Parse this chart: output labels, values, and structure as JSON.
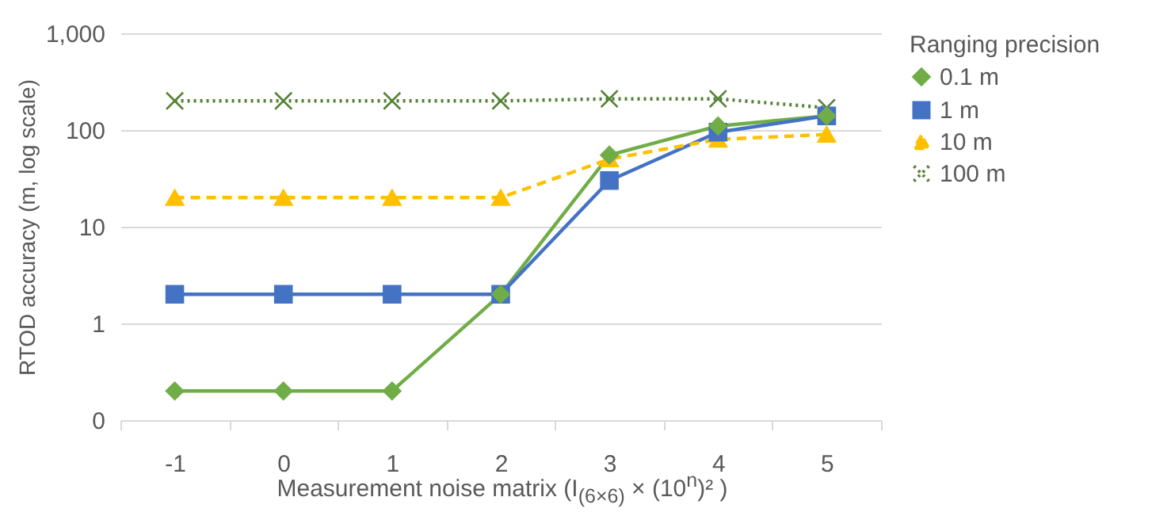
{
  "chart_data": {
    "type": "line",
    "xlabel": "Measurement noise matrix (I$_{(6×6)}$ × (10$^{n}$)² )",
    "ylabel": "RTOD accuracy (m, log scale)",
    "legend_title": "Ranging precision",
    "categories": [
      "-1",
      "0",
      "1",
      "2",
      "3",
      "4",
      "5"
    ],
    "series": [
      {
        "name": "0.1 m",
        "color": "#70ad47",
        "marker": "diamond",
        "line_style": "solid",
        "values": [
          0.2,
          0.2,
          0.2,
          2,
          55,
          110,
          140
        ]
      },
      {
        "name": "1 m",
        "color": "#4472c4",
        "marker": "square",
        "line_style": "solid",
        "values": [
          2,
          2,
          2,
          2,
          30,
          95,
          140
        ]
      },
      {
        "name": "10 m",
        "color": "#ffc000",
        "marker": "triangle",
        "line_style": "dashed",
        "values": [
          20,
          20,
          20,
          20,
          50,
          80,
          90
        ]
      },
      {
        "name": "100 m",
        "color": "#548235",
        "marker": "cross",
        "line_style": "dotted",
        "values": [
          200,
          200,
          200,
          200,
          210,
          210,
          170
        ]
      }
    ],
    "log": "y",
    "ylim": [
      0.1,
      1000
    ],
    "yticks": [
      {
        "value": 0.1,
        "label": "0"
      },
      1,
      10,
      100,
      {
        "value": 1000,
        "label": "1,000"
      }
    ],
    "grid": "y",
    "legend": "right"
  }
}
